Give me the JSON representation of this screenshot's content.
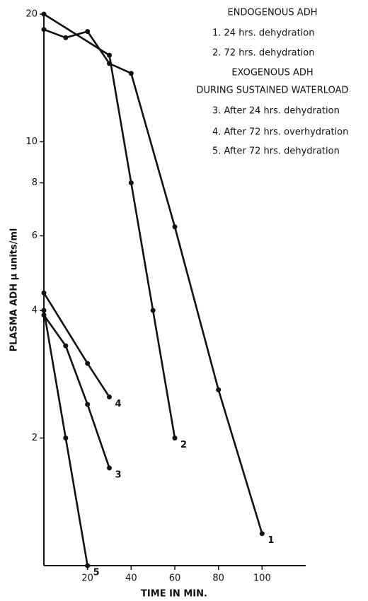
{
  "chart_data": {
    "type": "line",
    "y_label": "PLASMA ADH μ units/ml",
    "x_label": "TIME IN MIN.",
    "legend_text": [
      "ENDOGENOUS ADH",
      "1. 24 hrs. dehydration",
      "2. 72 hrs. dehydration",
      "EXOGENOUS ADH",
      "DURING SUSTAINED WATERLOAD",
      "3. After 24 hrs. dehydration",
      "4. After 72 hrs. overhydration",
      "5. After 72 hrs. dehydration"
    ],
    "log_y": true,
    "xlim": [
      0,
      120
    ],
    "ylim": [
      1,
      20
    ],
    "xticks": [
      20,
      40,
      60,
      80,
      100
    ],
    "yticks": [
      2,
      4,
      6,
      8,
      10,
      20
    ],
    "series": [
      {
        "name": "1",
        "color": "#111111",
        "x": [
          0,
          10,
          20,
          30,
          40,
          60,
          80,
          100
        ],
        "values": [
          18.4,
          17.6,
          18.2,
          15.3,
          14.5,
          6.3,
          2.6,
          1.19
        ]
      },
      {
        "name": "2",
        "color": "#111111",
        "x": [
          0,
          30,
          40,
          50,
          60
        ],
        "values": [
          20,
          16,
          8,
          4,
          2
        ]
      },
      {
        "name": "3",
        "color": "#111111",
        "x": [
          0,
          10,
          20,
          30
        ],
        "values": [
          3.9,
          3.3,
          2.4,
          1.7
        ]
      },
      {
        "name": "4",
        "color": "#111111",
        "x": [
          0,
          20,
          30
        ],
        "values": [
          4.4,
          3.0,
          2.5
        ]
      },
      {
        "name": "5",
        "color": "#111111",
        "x": [
          0,
          10,
          20
        ],
        "values": [
          4,
          2,
          1.0
        ]
      }
    ]
  }
}
